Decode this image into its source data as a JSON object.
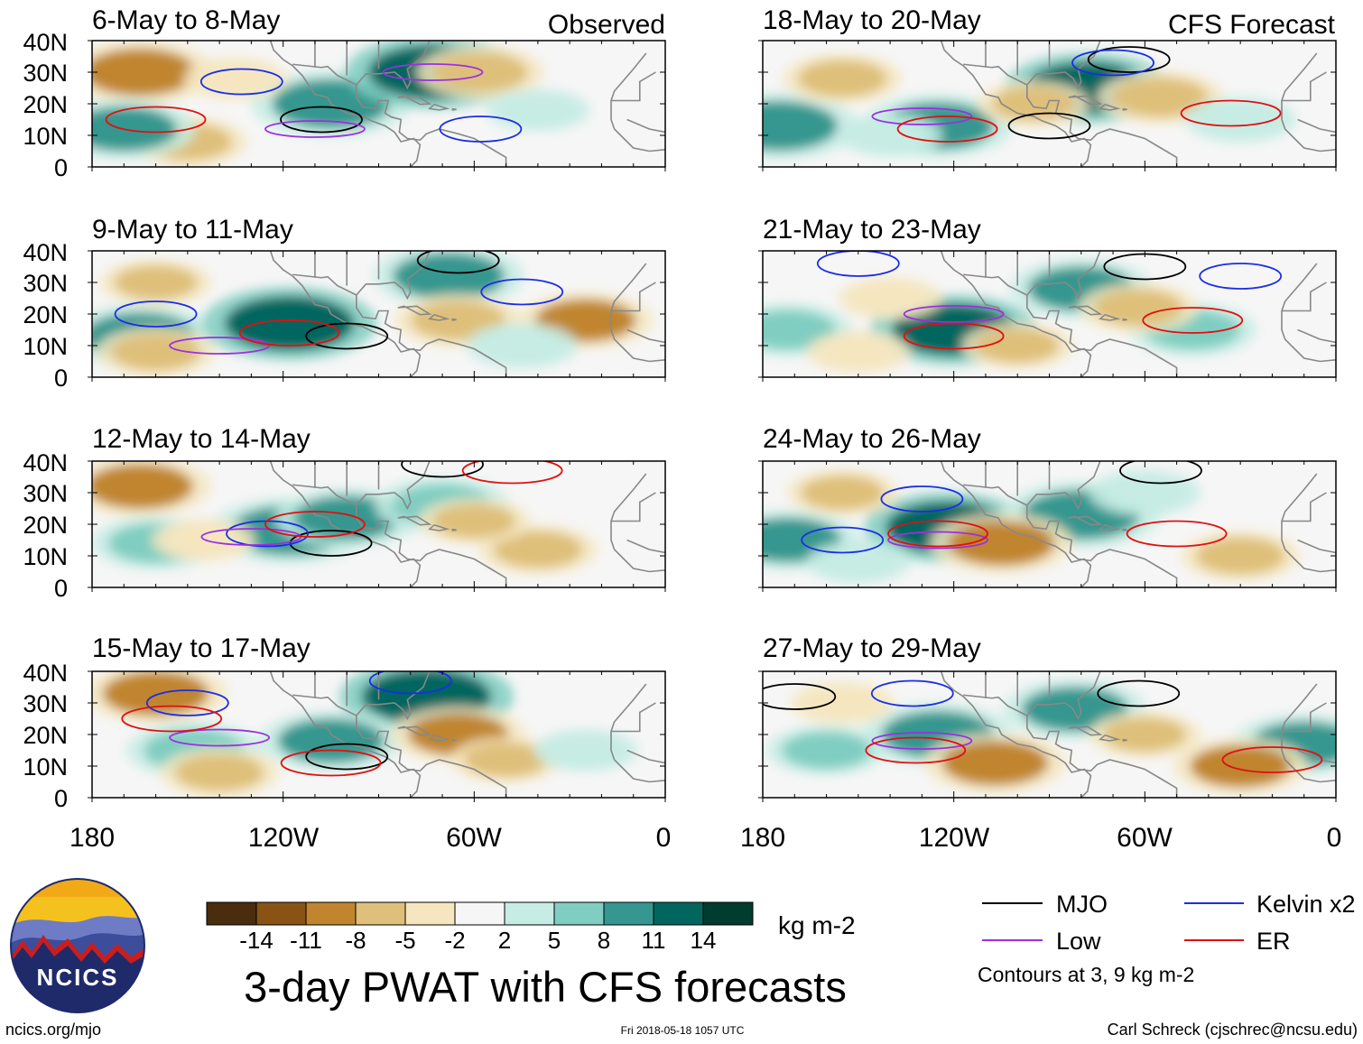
{
  "figure": {
    "title": "3-day PWAT with CFS forecasts",
    "colorbar_units": "kg m-2",
    "footer_left": "ncics.org/mjo",
    "footer_center": "Fri 2018-05-18 1057 UTC",
    "footer_right": "Carl Schreck (cjschrec@ncsu.edu)",
    "logo_text": "NCICS",
    "legend_note": "Contours at 3, 9 kg m-2"
  },
  "colors": {
    "map_land": "#888888",
    "mjo": "#000000",
    "kelvin": "#1a2ee6",
    "low": "#9b30e0",
    "er": "#e01010"
  },
  "legend": [
    {
      "label": "MJO",
      "color": "#000000"
    },
    {
      "label": "Kelvin x2",
      "color": "#1a2ee6"
    },
    {
      "label": "Low",
      "color": "#9b30e0"
    },
    {
      "label": "ER",
      "color": "#e01010"
    }
  ],
  "colorbar": {
    "colors": [
      "#4a2c0e",
      "#8a5316",
      "#c0852e",
      "#dfc07a",
      "#f5e6c0",
      "#f6f6f6",
      "#c6ece4",
      "#80cdc1",
      "#35978f",
      "#01665e",
      "#003c30"
    ],
    "tick_labels": [
      "-14",
      "-11",
      "-8",
      "-5",
      "-2",
      "2",
      "5",
      "8",
      "11",
      "14"
    ]
  },
  "chart_data": [
    {
      "type": "heatmap",
      "title": "6-May to 8-May",
      "corner_label": "Observed",
      "xlim": [
        -180,
        0
      ],
      "ylim": [
        0,
        40
      ],
      "xticks": [
        "180",
        "120W",
        "60W",
        "0"
      ],
      "yticks": [
        "40N",
        "30N",
        "20N",
        "10N",
        "0"
      ],
      "anomalies": [
        {
          "lon": -165,
          "lat": 30,
          "value": -10
        },
        {
          "lon": -150,
          "lat": 8,
          "value": -6
        },
        {
          "lon": -170,
          "lat": 12,
          "value": 9
        },
        {
          "lon": -105,
          "lat": 20,
          "value": 11
        },
        {
          "lon": -73,
          "lat": 30,
          "value": 13
        },
        {
          "lon": -58,
          "lat": 30,
          "value": -7
        },
        {
          "lon": -135,
          "lat": 28,
          "value": -4
        },
        {
          "lon": -40,
          "lat": 18,
          "value": 4
        }
      ],
      "contours": [
        {
          "kind": "MJO",
          "lon": -108,
          "lat": 15,
          "value": 3
        },
        {
          "kind": "Kelvin x2",
          "lon": -133,
          "lat": 27,
          "value": 3
        },
        {
          "kind": "Kelvin x2",
          "lon": -58,
          "lat": 12,
          "value": 3
        },
        {
          "kind": "Low",
          "lon": -110,
          "lat": 12,
          "value": 3
        },
        {
          "kind": "Low",
          "lon": -73,
          "lat": 30,
          "value": 3
        },
        {
          "kind": "ER",
          "lon": -160,
          "lat": 15,
          "value": 3
        }
      ]
    },
    {
      "type": "heatmap",
      "title": "9-May to 11-May",
      "corner_label": "",
      "xlim": [
        -180,
        0
      ],
      "ylim": [
        0,
        40
      ],
      "xticks": [
        "180",
        "120W",
        "60W",
        "0"
      ],
      "yticks": [
        "40N",
        "30N",
        "20N",
        "10N",
        "0"
      ],
      "anomalies": [
        {
          "lon": -165,
          "lat": 13,
          "value": 10
        },
        {
          "lon": -118,
          "lat": 17,
          "value": 13
        },
        {
          "lon": -68,
          "lat": 32,
          "value": 10
        },
        {
          "lon": -65,
          "lat": 18,
          "value": -7
        },
        {
          "lon": -25,
          "lat": 18,
          "value": -8
        },
        {
          "lon": -160,
          "lat": 30,
          "value": -5
        },
        {
          "lon": -160,
          "lat": 8,
          "value": -6
        },
        {
          "lon": -45,
          "lat": 10,
          "value": 5
        }
      ],
      "contours": [
        {
          "kind": "MJO",
          "lon": -100,
          "lat": 13,
          "value": 3
        },
        {
          "kind": "MJO",
          "lon": -65,
          "lat": 37,
          "value": 3
        },
        {
          "kind": "Kelvin x2",
          "lon": -160,
          "lat": 20,
          "value": 3
        },
        {
          "kind": "Kelvin x2",
          "lon": -45,
          "lat": 27,
          "value": 3
        },
        {
          "kind": "Low",
          "lon": -140,
          "lat": 10,
          "value": 3
        },
        {
          "kind": "ER",
          "lon": -118,
          "lat": 14,
          "value": 9
        }
      ]
    },
    {
      "type": "heatmap",
      "title": "12-May to 14-May",
      "corner_label": "",
      "xlim": [
        -180,
        0
      ],
      "ylim": [
        0,
        40
      ],
      "xticks": [
        "180",
        "120W",
        "60W",
        "0"
      ],
      "yticks": [
        "40N",
        "30N",
        "20N",
        "10N",
        "0"
      ],
      "anomalies": [
        {
          "lon": -165,
          "lat": 32,
          "value": -9
        },
        {
          "lon": -118,
          "lat": 18,
          "value": 11
        },
        {
          "lon": -100,
          "lat": 22,
          "value": 9
        },
        {
          "lon": -70,
          "lat": 26,
          "value": 8
        },
        {
          "lon": -40,
          "lat": 12,
          "value": -6
        },
        {
          "lon": -60,
          "lat": 21,
          "value": -5
        },
        {
          "lon": -160,
          "lat": 14,
          "value": 7
        },
        {
          "lon": -145,
          "lat": 15,
          "value": -4
        }
      ],
      "contours": [
        {
          "kind": "MJO",
          "lon": -105,
          "lat": 14,
          "value": 3
        },
        {
          "kind": "MJO",
          "lon": -70,
          "lat": 39,
          "value": 3
        },
        {
          "kind": "Kelvin x2",
          "lon": -125,
          "lat": 17,
          "value": 3
        },
        {
          "kind": "Low",
          "lon": -130,
          "lat": 16,
          "value": 3
        },
        {
          "kind": "ER",
          "lon": -110,
          "lat": 20,
          "value": 3
        },
        {
          "kind": "ER",
          "lon": -48,
          "lat": 37,
          "value": 3
        }
      ]
    },
    {
      "type": "heatmap",
      "title": "15-May to 17-May",
      "corner_label": "",
      "xlim": [
        -180,
        0
      ],
      "ylim": [
        0,
        40
      ],
      "xticks": [
        "180",
        "120W",
        "60W",
        "0"
      ],
      "yticks": [
        "40N",
        "30N",
        "20N",
        "10N",
        "0"
      ],
      "anomalies": [
        {
          "lon": -160,
          "lat": 33,
          "value": -9
        },
        {
          "lon": -148,
          "lat": 15,
          "value": 8
        },
        {
          "lon": -75,
          "lat": 32,
          "value": 13
        },
        {
          "lon": -105,
          "lat": 18,
          "value": 9
        },
        {
          "lon": -65,
          "lat": 20,
          "value": -8
        },
        {
          "lon": -50,
          "lat": 12,
          "value": -5
        },
        {
          "lon": -140,
          "lat": 8,
          "value": -6
        },
        {
          "lon": -25,
          "lat": 15,
          "value": 4
        }
      ],
      "contours": [
        {
          "kind": "MJO",
          "lon": -100,
          "lat": 13,
          "value": 3
        },
        {
          "kind": "Kelvin x2",
          "lon": -150,
          "lat": 30,
          "value": 3
        },
        {
          "kind": "Kelvin x2",
          "lon": -80,
          "lat": 37,
          "value": 3
        },
        {
          "kind": "Low",
          "lon": -140,
          "lat": 19,
          "value": 3
        },
        {
          "kind": "ER",
          "lon": -155,
          "lat": 25,
          "value": 3
        },
        {
          "kind": "ER",
          "lon": -105,
          "lat": 11,
          "value": 3
        }
      ]
    },
    {
      "type": "heatmap",
      "title": "18-May to 20-May",
      "corner_label": "CFS Forecast",
      "xlim": [
        -180,
        0
      ],
      "ylim": [
        0,
        40
      ],
      "xticks": [
        "180",
        "120W",
        "60W",
        "0"
      ],
      "yticks": [
        "40N",
        "30N",
        "20N",
        "10N",
        "0"
      ],
      "anomalies": [
        {
          "lon": -175,
          "lat": 13,
          "value": 11
        },
        {
          "lon": -125,
          "lat": 13,
          "value": 10
        },
        {
          "lon": -78,
          "lat": 25,
          "value": 12
        },
        {
          "lon": -155,
          "lat": 28,
          "value": -6
        },
        {
          "lon": -55,
          "lat": 22,
          "value": -7
        },
        {
          "lon": -95,
          "lat": 20,
          "value": -5
        },
        {
          "lon": -30,
          "lat": 15,
          "value": 5
        },
        {
          "lon": -140,
          "lat": 10,
          "value": 4
        }
      ],
      "contours": [
        {
          "kind": "MJO",
          "lon": -90,
          "lat": 13,
          "value": 3
        },
        {
          "kind": "MJO",
          "lon": -65,
          "lat": 34,
          "value": 3
        },
        {
          "kind": "Kelvin x2",
          "lon": -70,
          "lat": 33,
          "value": 3
        },
        {
          "kind": "Low",
          "lon": -130,
          "lat": 16,
          "value": 3
        },
        {
          "kind": "ER",
          "lon": -122,
          "lat": 12,
          "value": 3
        },
        {
          "kind": "ER",
          "lon": -33,
          "lat": 17,
          "value": 3
        }
      ]
    },
    {
      "type": "heatmap",
      "title": "21-May to 23-May",
      "corner_label": "",
      "xlim": [
        -180,
        0
      ],
      "ylim": [
        0,
        40
      ],
      "xticks": [
        "180",
        "120W",
        "60W",
        "0"
      ],
      "yticks": [
        "40N",
        "30N",
        "20N",
        "10N",
        "0"
      ],
      "anomalies": [
        {
          "lon": -120,
          "lat": 15,
          "value": 12
        },
        {
          "lon": -80,
          "lat": 28,
          "value": 9
        },
        {
          "lon": -45,
          "lat": 15,
          "value": 7
        },
        {
          "lon": -172,
          "lat": 15,
          "value": 7
        },
        {
          "lon": -140,
          "lat": 25,
          "value": -4
        },
        {
          "lon": -62,
          "lat": 22,
          "value": -6
        },
        {
          "lon": -100,
          "lat": 10,
          "value": -5
        },
        {
          "lon": -150,
          "lat": 8,
          "value": -4
        }
      ],
      "contours": [
        {
          "kind": "MJO",
          "lon": -60,
          "lat": 35,
          "value": 3
        },
        {
          "kind": "Kelvin x2",
          "lon": -150,
          "lat": 36,
          "value": 3
        },
        {
          "kind": "Kelvin x2",
          "lon": -30,
          "lat": 32,
          "value": 3
        },
        {
          "kind": "Low",
          "lon": -120,
          "lat": 20,
          "value": 3
        },
        {
          "kind": "ER",
          "lon": -120,
          "lat": 13,
          "value": 3
        },
        {
          "kind": "ER",
          "lon": -45,
          "lat": 18,
          "value": 3
        }
      ]
    },
    {
      "type": "heatmap",
      "title": "24-May to 26-May",
      "corner_label": "",
      "xlim": [
        -180,
        0
      ],
      "ylim": [
        0,
        40
      ],
      "xticks": [
        "180",
        "120W",
        "60W",
        "0"
      ],
      "yticks": [
        "40N",
        "30N",
        "20N",
        "10N",
        "0"
      ],
      "anomalies": [
        {
          "lon": -122,
          "lat": 19,
          "value": 12
        },
        {
          "lon": -80,
          "lat": 23,
          "value": 11
        },
        {
          "lon": -172,
          "lat": 15,
          "value": 9
        },
        {
          "lon": -105,
          "lat": 14,
          "value": -9
        },
        {
          "lon": -155,
          "lat": 30,
          "value": -5
        },
        {
          "lon": -30,
          "lat": 10,
          "value": -6
        },
        {
          "lon": -60,
          "lat": 30,
          "value": 5
        },
        {
          "lon": -150,
          "lat": 8,
          "value": 4
        }
      ],
      "contours": [
        {
          "kind": "MJO",
          "lon": -55,
          "lat": 37,
          "value": 3
        },
        {
          "kind": "Kelvin x2",
          "lon": -155,
          "lat": 15,
          "value": 3
        },
        {
          "kind": "Kelvin x2",
          "lon": -130,
          "lat": 28,
          "value": 3
        },
        {
          "kind": "Low",
          "lon": -125,
          "lat": 15,
          "value": 3
        },
        {
          "kind": "ER",
          "lon": -125,
          "lat": 17,
          "value": 3
        },
        {
          "kind": "ER",
          "lon": -50,
          "lat": 17,
          "value": 3
        }
      ]
    },
    {
      "type": "heatmap",
      "title": "27-May to 29-May",
      "corner_label": "",
      "xlim": [
        -180,
        0
      ],
      "ylim": [
        0,
        40
      ],
      "xticks": [
        "180",
        "120W",
        "60W",
        "0"
      ],
      "yticks": [
        "40N",
        "30N",
        "20N",
        "10N",
        "0"
      ],
      "anomalies": [
        {
          "lon": -125,
          "lat": 20,
          "value": 10
        },
        {
          "lon": -82,
          "lat": 28,
          "value": 9
        },
        {
          "lon": -10,
          "lat": 17,
          "value": 9
        },
        {
          "lon": -160,
          "lat": 15,
          "value": 6
        },
        {
          "lon": -107,
          "lat": 11,
          "value": -9
        },
        {
          "lon": -30,
          "lat": 10,
          "value": -8
        },
        {
          "lon": -155,
          "lat": 30,
          "value": -4
        },
        {
          "lon": -60,
          "lat": 20,
          "value": -5
        }
      ],
      "contours": [
        {
          "kind": "MJO",
          "lon": -170,
          "lat": 32,
          "value": 3
        },
        {
          "kind": "MJO",
          "lon": -62,
          "lat": 33,
          "value": 3
        },
        {
          "kind": "Kelvin x2",
          "lon": -133,
          "lat": 33,
          "value": 3
        },
        {
          "kind": "Low",
          "lon": -130,
          "lat": 18,
          "value": 3
        },
        {
          "kind": "ER",
          "lon": -132,
          "lat": 15,
          "value": 3
        },
        {
          "kind": "ER",
          "lon": -20,
          "lat": 12,
          "value": 3
        }
      ]
    }
  ]
}
